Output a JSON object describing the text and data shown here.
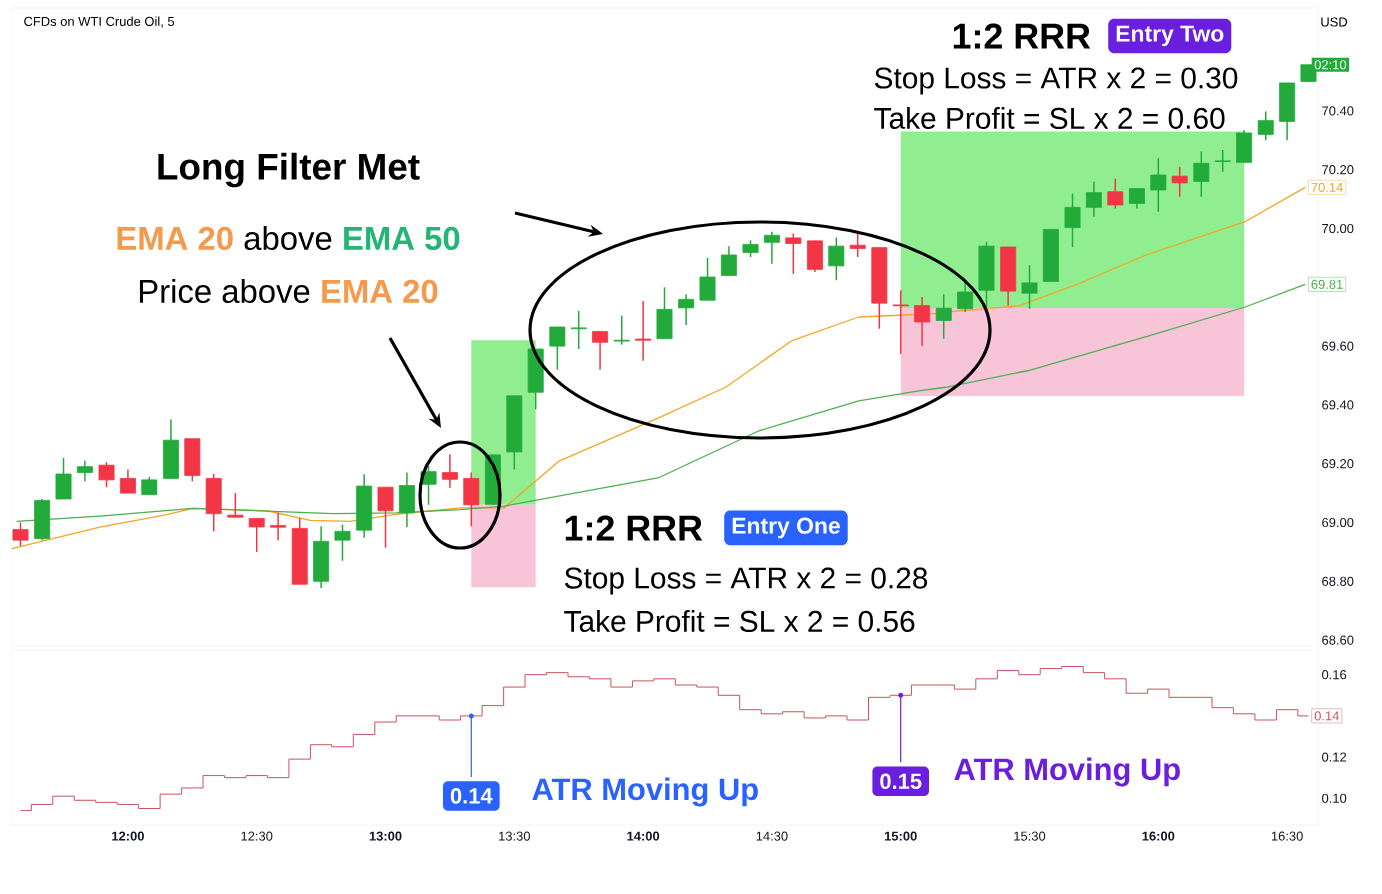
{
  "chart_data": [
    {
      "type": "candlestick",
      "title": "CFDs on WTI Crude Oil, 5",
      "tick_labels": "y",
      "x": [
        11.583,
        11.667,
        11.75,
        11.833,
        11.917,
        12,
        12.083,
        12.167,
        12.25,
        12.333,
        12.417,
        12.5,
        12.583,
        12.667,
        12.75,
        12.833,
        12.917,
        13,
        13.083,
        13.167,
        13.25,
        13.333,
        13.417,
        13.5,
        13.583,
        13.667,
        13.75,
        13.833,
        13.917,
        14,
        14.083,
        14.167,
        14.25,
        14.333,
        14.417,
        14.5,
        14.583,
        14.667,
        14.75,
        14.833,
        14.917,
        15,
        15.083,
        15.167,
        15.25,
        15.333,
        15.417,
        15.5,
        15.583,
        15.667,
        15.75,
        15.833,
        15.917,
        16,
        16.083,
        16.167,
        16.25,
        16.333,
        16.417,
        16.5,
        16.583
      ],
      "ohlc": [
        [
          68.976,
          69.0,
          68.92,
          68.94
        ],
        [
          68.945,
          69.08,
          68.94,
          69.075
        ],
        [
          69.08,
          69.22,
          69.08,
          69.165
        ],
        [
          69.17,
          69.21,
          69.14,
          69.19
        ],
        [
          69.195,
          69.205,
          69.12,
          69.145
        ],
        [
          69.15,
          69.18,
          69.1,
          69.1
        ],
        [
          69.095,
          69.155,
          69.095,
          69.145
        ],
        [
          69.15,
          69.35,
          69.15,
          69.28
        ],
        [
          69.285,
          69.285,
          69.14,
          69.16
        ],
        [
          69.15,
          69.165,
          68.97,
          69.03
        ],
        [
          69.025,
          69.1,
          69.018,
          69.018
        ],
        [
          69.014,
          69.014,
          68.9,
          68.985
        ],
        [
          68.99,
          69.033,
          68.94,
          68.984
        ],
        [
          68.98,
          69.016,
          68.79,
          68.79
        ],
        [
          68.8,
          68.987,
          68.777,
          68.936
        ],
        [
          68.94,
          68.993,
          68.87,
          68.97
        ],
        [
          68.974,
          69.164,
          68.948,
          69.124
        ],
        [
          69.12,
          69.12,
          68.914,
          69.04
        ],
        [
          69.033,
          69.17,
          68.984,
          69.126
        ],
        [
          69.13,
          69.192,
          69.06,
          69.173
        ],
        [
          69.17,
          69.232,
          69.118,
          69.147
        ],
        [
          69.15,
          69.17,
          68.987,
          69.06
        ],
        [
          69.062,
          69.23,
          69.06,
          69.23
        ],
        [
          69.24,
          69.431,
          69.18,
          69.431
        ],
        [
          69.443,
          69.59,
          69.385,
          69.59
        ],
        [
          69.6,
          69.665,
          69.52,
          69.665
        ],
        [
          69.659,
          69.72,
          69.59,
          69.662
        ],
        [
          69.65,
          69.65,
          69.52,
          69.613
        ],
        [
          69.617,
          69.704,
          69.605,
          69.62
        ],
        [
          69.624,
          69.753,
          69.55,
          69.62
        ],
        [
          69.625,
          69.8,
          69.625,
          69.725
        ],
        [
          69.73,
          69.776,
          69.672,
          69.759
        ],
        [
          69.756,
          69.9,
          69.756,
          69.835
        ],
        [
          69.84,
          69.94,
          69.84,
          69.91
        ],
        [
          69.918,
          69.96,
          69.903,
          69.946
        ],
        [
          69.953,
          69.989,
          69.88,
          69.977
        ],
        [
          69.968,
          69.983,
          69.846,
          69.949
        ],
        [
          69.958,
          69.958,
          69.852,
          69.861
        ],
        [
          69.873,
          69.969,
          69.824,
          69.94
        ],
        [
          69.943,
          69.983,
          69.903,
          69.932
        ],
        [
          69.935,
          69.935,
          69.659,
          69.746
        ],
        [
          69.74,
          69.79,
          69.573,
          69.737
        ],
        [
          69.738,
          69.767,
          69.6,
          69.682
        ],
        [
          69.687,
          69.776,
          69.625,
          69.729
        ],
        [
          69.727,
          69.818,
          69.716,
          69.784
        ],
        [
          69.79,
          69.955,
          69.733,
          69.94
        ],
        [
          69.937,
          69.937,
          69.738,
          69.787
        ],
        [
          69.78,
          69.875,
          69.727,
          69.815
        ],
        [
          69.82,
          69.997,
          69.82,
          69.997
        ],
        [
          70.003,
          70.119,
          69.937,
          70.072
        ],
        [
          70.072,
          70.159,
          70.04,
          70.122
        ],
        [
          70.125,
          70.17,
          70.068,
          70.08
        ],
        [
          70.085,
          70.136,
          70.068,
          70.136
        ],
        [
          70.131,
          70.239,
          70.057,
          70.182
        ],
        [
          70.178,
          70.21,
          70.108,
          70.155
        ],
        [
          70.16,
          70.262,
          70.108,
          70.222
        ],
        [
          70.228,
          70.267,
          70.193,
          70.23
        ],
        [
          70.225,
          70.335,
          70.225,
          70.325
        ],
        [
          70.32,
          70.398,
          70.3,
          70.367
        ],
        [
          70.364,
          70.495,
          70.3,
          70.495
        ],
        [
          70.5,
          70.557,
          70.5,
          70.557
        ]
      ],
      "series": [
        {
          "type": "bar",
          "color": "#f8c4d7",
          "x": [
            13.458,
            15.667
          ],
          "base": [
            68.78,
            69.43
          ],
          "values": [
            0.28,
            0.3
          ]
        },
        {
          "type": "bar",
          "color": "#90ee90",
          "x": [
            13.458,
            15.667
          ],
          "base": [
            69.06,
            69.73
          ],
          "values": [
            0.56,
            0.6
          ]
        },
        {
          "type": "line",
          "color": "#f5a524",
          "x": [
            11.55,
            11.891,
            12.151,
            12.252,
            12.54,
            12.708,
            12.86,
            13.04,
            13.29,
            13.461,
            13.674,
            14.062,
            14.322,
            14.578,
            14.837,
            15.125,
            15.208,
            15.458,
            15.69,
            15.95,
            16.337,
            16.57
          ],
          "values": [
            68.911,
            68.984,
            69.027,
            69.048,
            69.04,
            69.007,
            69.004,
            69.028,
            69.05,
            69.05,
            69.209,
            69.357,
            69.461,
            69.619,
            69.699,
            69.71,
            69.718,
            69.737,
            69.812,
            69.909,
            70.023,
            70.14
          ]
        },
        {
          "type": "line",
          "color": "#4caf50",
          "x": [
            11.568,
            11.891,
            12.252,
            12.539,
            12.795,
            13.04,
            13.29,
            13.461,
            14.062,
            14.45,
            14.837,
            15.07,
            15.174,
            15.496,
            15.95,
            16.337,
            16.57
          ],
          "values": [
            69.004,
            69.022,
            69.048,
            69.039,
            69.03,
            69.033,
            69.044,
            69.056,
            69.153,
            69.312,
            69.414,
            69.448,
            69.46,
            69.517,
            69.631,
            69.733,
            69.81
          ]
        }
      ],
      "xlim": [
        11.55,
        16.62
      ],
      "ylim": [
        68.58,
        70.75
      ],
      "yticks": [
        {
          "value": 68.6,
          "label": "68.60"
        },
        {
          "value": 68.8,
          "label": "68.80"
        },
        {
          "value": 69.0,
          "label": "69.00"
        },
        {
          "value": 69.2,
          "label": "69.20"
        },
        {
          "value": 69.4,
          "label": "69.40"
        },
        {
          "value": 69.6,
          "label": "69.60"
        },
        {
          "value": 70.0,
          "label": "70.00"
        },
        {
          "value": 70.2,
          "label": "70.20"
        },
        {
          "value": 70.4,
          "label": "70.40"
        }
      ],
      "annotations": [
        "Long Filter Met",
        "EMA 20",
        "above",
        "EMA 50",
        "Price above",
        "EMA 20",
        "1:2 RRR",
        "Entry One",
        "Stop Loss = ATR x 2 = 0.28",
        "Take Profit = SL x 2 = 0.56",
        "1:2 RRR",
        "Entry Two",
        "Stop Loss = ATR x 2 = 0.30",
        "Take Profit = SL x 2 = 0.60",
        "USD",
        {
          "text": "70.14",
          "x": 16.57,
          "y": 70.14
        },
        {
          "text": "69.81",
          "x": 16.57,
          "y": 69.81
        },
        {
          "text": "02:10",
          "x": 16.583,
          "y": 70.557
        }
      ]
    },
    {
      "type": "step",
      "color": "#c8545c",
      "x": [
        11.583,
        11.667,
        11.75,
        11.833,
        11.917,
        12,
        12.083,
        12.167,
        12.25,
        12.333,
        12.417,
        12.5,
        12.583,
        12.667,
        12.75,
        12.833,
        12.917,
        13,
        13.083,
        13.167,
        13.25,
        13.333,
        13.417,
        13.5,
        13.583,
        13.667,
        13.75,
        13.833,
        13.917,
        14,
        14.083,
        14.167,
        14.25,
        14.333,
        14.417,
        14.5,
        14.583,
        14.667,
        14.75,
        14.833,
        14.917,
        15,
        15.083,
        15.167,
        15.25,
        15.333,
        15.417,
        15.5,
        15.583,
        15.667,
        15.75,
        15.833,
        15.917,
        16,
        16.083,
        16.167,
        16.25,
        16.333,
        16.417,
        16.5,
        16.583
      ],
      "values": [
        0.094,
        0.097,
        0.101,
        0.099,
        0.098,
        0.097,
        0.095,
        0.102,
        0.105,
        0.111,
        0.11,
        0.111,
        0.11,
        0.119,
        0.126,
        0.125,
        0.131,
        0.137,
        0.14,
        0.14,
        0.138,
        0.14,
        0.145,
        0.154,
        0.16,
        0.161,
        0.159,
        0.158,
        0.154,
        0.157,
        0.158,
        0.155,
        0.154,
        0.15,
        0.143,
        0.141,
        0.142,
        0.139,
        0.14,
        0.138,
        0.149,
        0.15,
        0.155,
        0.155,
        0.153,
        0.158,
        0.162,
        0.16,
        0.163,
        0.164,
        0.161,
        0.158,
        0.151,
        0.153,
        0.149,
        0.149,
        0.144,
        0.141,
        0.138,
        0.143,
        0.14
      ],
      "xlim": [
        11.55,
        16.62
      ],
      "ylim": [
        0.087,
        0.172
      ],
      "xticks": [
        {
          "value": 12,
          "label": "12:00"
        },
        {
          "value": 12.5,
          "label": "12:30"
        },
        {
          "value": 13,
          "label": "13:00"
        },
        {
          "value": 13.5,
          "label": "13:30"
        },
        {
          "value": 14,
          "label": "14:00"
        },
        {
          "value": 14.5,
          "label": "14:30"
        },
        {
          "value": 15,
          "label": "15:00"
        },
        {
          "value": 15.5,
          "label": "15:30"
        },
        {
          "value": 16,
          "label": "16:00"
        },
        {
          "value": 16.5,
          "label": "16:30"
        }
      ],
      "yticks": [
        {
          "value": 0.1,
          "label": "0.10"
        },
        0.12,
        0.16
      ],
      "annotations": [
        {
          "text": "0.14",
          "x": 13.333,
          "y": 0.14
        },
        "ATR Moving Up",
        {
          "text": "0.15",
          "x": 15,
          "y": 0.15
        },
        "ATR Moving Up",
        {
          "text": "0.14",
          "x": 16.583,
          "y": 0.14
        }
      ]
    }
  ]
}
